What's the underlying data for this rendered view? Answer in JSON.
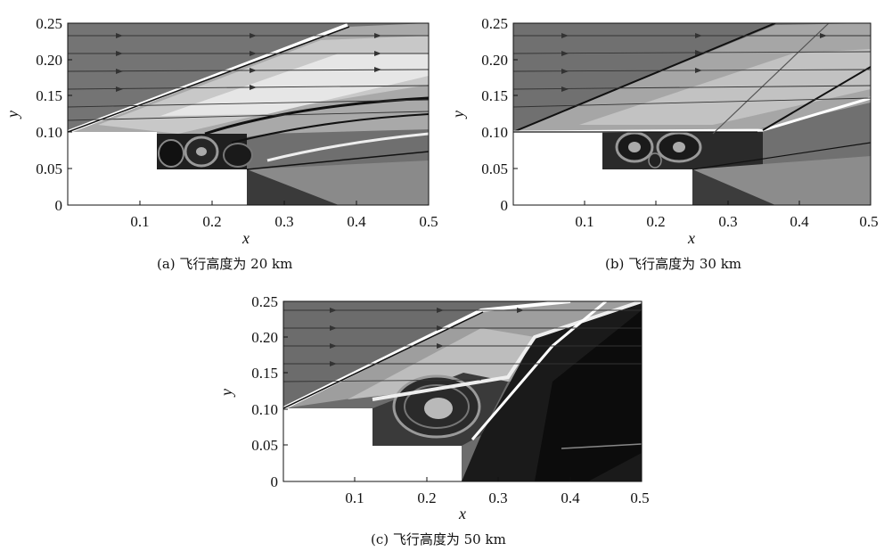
{
  "panels": [
    {
      "id": "a",
      "caption": "(a) 飞行高度为 20 km",
      "xlabel": "x",
      "ylabel": "y",
      "xticks": [
        "0.1",
        "0.2",
        "0.3",
        "0.4",
        "0.5"
      ],
      "yticks": [
        "0",
        "0.05",
        "0.10",
        "0.15",
        "0.20",
        "0.25"
      ]
    },
    {
      "id": "b",
      "caption": "(b) 飞行高度为 30 km",
      "xlabel": "x",
      "ylabel": "y",
      "xticks": [
        "0.1",
        "0.2",
        "0.3",
        "0.4",
        "0.5"
      ],
      "yticks": [
        "0",
        "0.05",
        "0.10",
        "0.15",
        "0.20",
        "0.25"
      ]
    },
    {
      "id": "c",
      "caption": "(c) 飞行高度为 50 km",
      "xlabel": "x",
      "ylabel": "y",
      "xticks": [
        "0.1",
        "0.2",
        "0.3",
        "0.4",
        "0.5"
      ],
      "yticks": [
        "0",
        "0.05",
        "0.10",
        "0.15",
        "0.20",
        "0.25"
      ]
    }
  ]
}
